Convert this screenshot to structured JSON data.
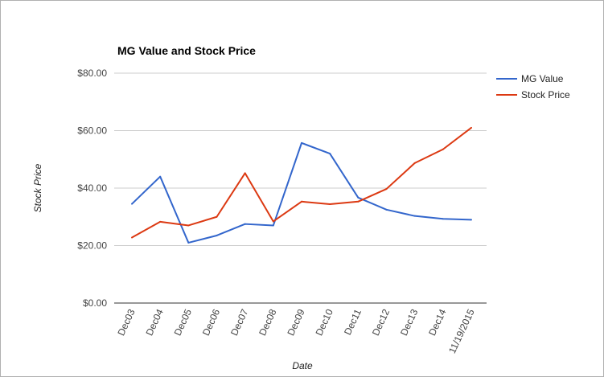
{
  "chart_data": {
    "type": "line",
    "title": "MG Value and Stock Price",
    "xlabel": "Date",
    "ylabel": "Stock Price",
    "categories": [
      "Dec03",
      "Dec04",
      "Dec05",
      "Dec06",
      "Dec07",
      "Dec08",
      "Dec09",
      "Dec10",
      "Dec11",
      "Dec12",
      "Dec13",
      "Dec14",
      "11/19/2015"
    ],
    "ylim": [
      0,
      80
    ],
    "yticks": [
      {
        "value": 0,
        "label": "$0.00"
      },
      {
        "value": 20,
        "label": "$20.00"
      },
      {
        "value": 40,
        "label": "$40.00"
      },
      {
        "value": 60,
        "label": "$60.00"
      },
      {
        "value": 80,
        "label": "$80.00"
      }
    ],
    "grid": true,
    "legend_position": "right",
    "series": [
      {
        "name": "MG Value",
        "color": "#3366cc",
        "values": [
          34.5,
          44.0,
          21.0,
          23.5,
          27.5,
          27.0,
          55.7,
          52.0,
          36.7,
          32.5,
          30.3,
          29.3,
          29.0
        ]
      },
      {
        "name": "Stock Price",
        "color": "#dc3912",
        "values": [
          22.8,
          28.3,
          27.0,
          30.0,
          45.2,
          28.4,
          35.3,
          34.4,
          35.3,
          39.7,
          48.7,
          53.5,
          61.0
        ]
      }
    ]
  }
}
